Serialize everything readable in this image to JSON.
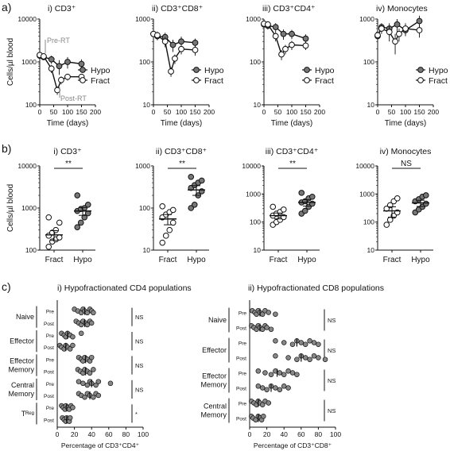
{
  "row_labels": {
    "a": "a)",
    "b": "b)",
    "c": "c)"
  },
  "chart_data": [
    {
      "id": "a1",
      "type": "line",
      "title": "i) CD3⁺",
      "ylabel": "Cells/µl blood",
      "xlabel": "Time (days)",
      "yscale": "log",
      "ylim": [
        100,
        10000
      ],
      "xlim": [
        0,
        200
      ],
      "xticks": [
        "0",
        "50",
        "100",
        "150",
        "200"
      ],
      "yticks": [
        "100",
        "1000",
        "10000"
      ],
      "legend": "right",
      "annotations": [
        "Pre-RT",
        "Post-RT"
      ],
      "series": [
        {
          "name": "Hypo",
          "x": [
            0,
            14,
            42,
            70,
            100,
            150
          ],
          "y": [
            1400,
            1300,
            1150,
            800,
            1000,
            900
          ],
          "err": [
            200,
            200,
            250,
            300,
            300,
            250
          ]
        },
        {
          "name": "Fract",
          "x": [
            0,
            14,
            42,
            63,
            77,
            100,
            150
          ],
          "y": [
            1450,
            1350,
            700,
            220,
            380,
            450,
            450
          ],
          "err": [
            200,
            200,
            150,
            50,
            80,
            80,
            60
          ]
        }
      ]
    },
    {
      "id": "a2",
      "type": "line",
      "title": "ii) CD3⁺CD8⁺",
      "ylabel": "",
      "xlabel": "Time (days)",
      "yscale": "log",
      "ylim": [
        10,
        1000
      ],
      "xlim": [
        0,
        200
      ],
      "xticks": [
        "0",
        "50",
        "100",
        "150",
        "200"
      ],
      "yticks": [
        "10",
        "100",
        "1000"
      ],
      "legend": "right",
      "series": [
        {
          "name": "Hypo",
          "x": [
            0,
            14,
            42,
            70,
            100,
            150
          ],
          "y": [
            450,
            400,
            380,
            250,
            300,
            280
          ],
          "err": [
            100,
            80,
            100,
            80,
            90,
            70
          ]
        },
        {
          "name": "Fract",
          "x": [
            0,
            14,
            42,
            63,
            77,
            100,
            150
          ],
          "y": [
            450,
            420,
            300,
            60,
            120,
            200,
            190
          ],
          "err": [
            100,
            90,
            80,
            15,
            30,
            50,
            50
          ]
        }
      ]
    },
    {
      "id": "a3",
      "type": "line",
      "title": "iii) CD3⁺CD4⁺",
      "ylabel": "",
      "xlabel": "Time (days)",
      "yscale": "log",
      "ylim": [
        10,
        1000
      ],
      "xlim": [
        0,
        200
      ],
      "xticks": [
        "0",
        "50",
        "100",
        "150",
        "200"
      ],
      "yticks": [
        "10",
        "100",
        "1000"
      ],
      "legend": "right",
      "series": [
        {
          "name": "Hypo",
          "x": [
            0,
            14,
            42,
            70,
            100,
            150
          ],
          "y": [
            750,
            700,
            650,
            450,
            450,
            350
          ],
          "err": [
            150,
            130,
            150,
            120,
            110,
            90
          ]
        },
        {
          "name": "Fract",
          "x": [
            0,
            14,
            42,
            63,
            77,
            100,
            150
          ],
          "y": [
            780,
            750,
            400,
            150,
            200,
            250,
            240
          ],
          "err": [
            150,
            140,
            100,
            40,
            50,
            60,
            50
          ]
        }
      ]
    },
    {
      "id": "a4",
      "type": "line",
      "title": "iv) Monocytes",
      "ylabel": "",
      "xlabel": "Time (days)",
      "yscale": "log",
      "ylim": [
        10,
        1000
      ],
      "xlim": [
        0,
        200
      ],
      "xticks": [
        "0",
        "50",
        "100",
        "150",
        "200"
      ],
      "yticks": [
        "10",
        "100",
        "1000"
      ],
      "legend": "right",
      "series": [
        {
          "name": "Hypo",
          "x": [
            0,
            14,
            42,
            70,
            100,
            150
          ],
          "y": [
            400,
            650,
            600,
            750,
            550,
            900
          ],
          "err": [
            100,
            150,
            200,
            250,
            150,
            300
          ]
        },
        {
          "name": "Fract",
          "x": [
            0,
            14,
            42,
            63,
            77,
            100,
            150
          ],
          "y": [
            420,
            600,
            500,
            300,
            450,
            600,
            550
          ],
          "err": [
            100,
            150,
            200,
            150,
            150,
            200,
            180
          ]
        }
      ]
    },
    {
      "id": "b1",
      "type": "scatter",
      "title": "i) CD3⁺",
      "ylabel": "Cells/µl blood",
      "yscale": "log",
      "ylim": [
        100,
        10000
      ],
      "yticks": [
        "100",
        "1000",
        "10000"
      ],
      "categories": [
        "Fract",
        "Hypo"
      ],
      "significance": "**",
      "groups": [
        {
          "name": "Fract",
          "values": [
            120,
            160,
            180,
            200,
            220,
            260,
            300,
            450,
            600
          ],
          "mean": 230,
          "err": 60
        },
        {
          "name": "Hypo",
          "values": [
            350,
            450,
            600,
            750,
            850,
            950,
            1000,
            1200,
            2000
          ],
          "mean": 850,
          "err": 180
        }
      ]
    },
    {
      "id": "b2",
      "type": "scatter",
      "title": "ii) CD3⁺CD8⁺",
      "ylabel": "",
      "yscale": "log",
      "ylim": [
        10,
        1000
      ],
      "yticks": [
        "10",
        "100",
        "1000"
      ],
      "categories": [
        "Fract",
        "Hypo"
      ],
      "significance": "**",
      "groups": [
        {
          "name": "Fract",
          "values": [
            15,
            22,
            30,
            45,
            60,
            70,
            80,
            90,
            110
          ],
          "mean": 55,
          "err": 15
        },
        {
          "name": "Hypo",
          "values": [
            100,
            120,
            200,
            250,
            300,
            350,
            400,
            450,
            550
          ],
          "mean": 270,
          "err": 70
        }
      ]
    },
    {
      "id": "b3",
      "type": "scatter",
      "title": "iii) CD3⁺CD4⁺",
      "ylabel": "",
      "yscale": "log",
      "ylim": [
        10,
        10000
      ],
      "yticks": [
        "10",
        "100",
        "1000",
        "10000"
      ],
      "categories": [
        "Fract",
        "Hypo"
      ],
      "significance": "**",
      "groups": [
        {
          "name": "Fract",
          "values": [
            80,
            100,
            120,
            150,
            170,
            200,
            230,
            280,
            350
          ],
          "mean": 170,
          "err": 40
        },
        {
          "name": "Hypo",
          "values": [
            200,
            250,
            350,
            450,
            500,
            550,
            700,
            800,
            1100
          ],
          "mean": 500,
          "err": 130
        }
      ]
    },
    {
      "id": "b4",
      "type": "scatter",
      "title": "iv) Monocytes",
      "ylabel": "",
      "yscale": "log",
      "ylim": [
        10,
        10000
      ],
      "yticks": [
        "10",
        "100",
        "1000",
        "10000"
      ],
      "categories": [
        "Fract",
        "Hypo"
      ],
      "significance": "NS",
      "groups": [
        {
          "name": "Fract",
          "values": [
            80,
            120,
            170,
            220,
            300,
            400,
            550,
            700
          ],
          "mean": 250,
          "err": 100
        },
        {
          "name": "Hypo",
          "values": [
            220,
            280,
            350,
            450,
            550,
            650,
            800,
            900
          ],
          "mean": 480,
          "err": 120
        }
      ]
    },
    {
      "id": "c1",
      "type": "scatter",
      "orientation": "horizontal",
      "title": "i) Hypofractionated CD4 populations",
      "xlabel": "Percentage of CD3⁺CD4⁺",
      "xlim": [
        0,
        100
      ],
      "xticks": [
        "0",
        "20",
        "40",
        "60",
        "80",
        "100"
      ],
      "groups": [
        {
          "name": "Naive",
          "sig": "NS",
          "rows": [
            {
              "label": "Pre",
              "values": [
                20,
                24,
                28,
                30,
                32,
                35,
                38,
                40,
                42
              ],
              "mean": 32
            },
            {
              "label": "Post",
              "values": [
                22,
                25,
                28,
                30,
                33,
                35,
                38,
                40
              ],
              "mean": 32
            }
          ]
        },
        {
          "name": "Effector",
          "sig": "NS",
          "rows": [
            {
              "label": "Pre",
              "values": [
                5,
                8,
                10,
                12,
                15,
                18,
                28
              ],
              "mean": 12
            },
            {
              "label": "Post",
              "values": [
                3,
                5,
                8,
                10,
                12,
                15,
                18
              ],
              "mean": 10
            }
          ]
        },
        {
          "name": "Effector\nMemory",
          "sig": "NS",
          "rows": [
            {
              "label": "Pre",
              "values": [
                25,
                28,
                30,
                32,
                35,
                38,
                40
              ],
              "mean": 33
            },
            {
              "label": "Post",
              "values": [
                24,
                27,
                30,
                32,
                35,
                38,
                42
              ],
              "mean": 33
            }
          ]
        },
        {
          "name": "Central\nMemory",
          "sig": "NS",
          "rows": [
            {
              "label": "Pre",
              "values": [
                25,
                30,
                35,
                38,
                40,
                45,
                48,
                62
              ],
              "mean": 40
            },
            {
              "label": "Post",
              "values": [
                25,
                28,
                32,
                35,
                38,
                42,
                45,
                48
              ],
              "mean": 38
            }
          ]
        },
        {
          "name": "Tᴿᵉᵍ",
          "sig": "*",
          "rows": [
            {
              "label": "Pre",
              "values": [
                5,
                7,
                9,
                10,
                12,
                14,
                16,
                18
              ],
              "mean": 11
            },
            {
              "label": "Post",
              "values": [
                6,
                8,
                10,
                11,
                13,
                14,
                15
              ],
              "mean": 11
            }
          ]
        }
      ]
    },
    {
      "id": "c2",
      "type": "scatter",
      "orientation": "horizontal",
      "title": "ii) Hypofractionated CD8 populations",
      "xlabel": "Percentage of CD3⁺CD8⁺",
      "xlim": [
        0,
        100
      ],
      "xticks": [
        "0",
        "20",
        "40",
        "60",
        "80",
        "100"
      ],
      "groups": [
        {
          "name": "Naive",
          "sig": "NS",
          "rows": [
            {
              "label": "Pre",
              "values": [
                3,
                6,
                8,
                10,
                12,
                15,
                18,
                22,
                30
              ],
              "mean": 12
            },
            {
              "label": "Post",
              "values": [
                2,
                5,
                8,
                10,
                12,
                15,
                18,
                20,
                25
              ],
              "mean": 12
            }
          ]
        },
        {
          "name": "Effector",
          "sig": "NS",
          "rows": [
            {
              "label": "Pre",
              "values": [
                30,
                40,
                50,
                55,
                60,
                65,
                70,
                75,
                80
              ],
              "mean": 55
            },
            {
              "label": "Post",
              "values": [
                30,
                45,
                55,
                60,
                65,
                70,
                75,
                80,
                88
              ],
              "mean": 60
            }
          ]
        },
        {
          "name": "Effector\nMemory",
          "sig": "NS",
          "rows": [
            {
              "label": "Pre",
              "values": [
                10,
                18,
                25,
                30,
                35,
                40,
                45,
                50,
                55
              ],
              "mean": 32
            },
            {
              "label": "Post",
              "values": [
                10,
                15,
                20,
                25,
                30,
                35,
                40,
                45
              ],
              "mean": 25
            }
          ]
        },
        {
          "name": "Central\nMemory",
          "sig": "NS",
          "rows": [
            {
              "label": "Pre",
              "values": [
                2,
                5,
                8,
                10,
                12,
                15,
                18,
                22
              ],
              "mean": 10
            },
            {
              "label": "Post",
              "values": [
                2,
                4,
                7,
                10,
                12,
                14,
                16
              ],
              "mean": 10
            }
          ]
        }
      ]
    }
  ]
}
